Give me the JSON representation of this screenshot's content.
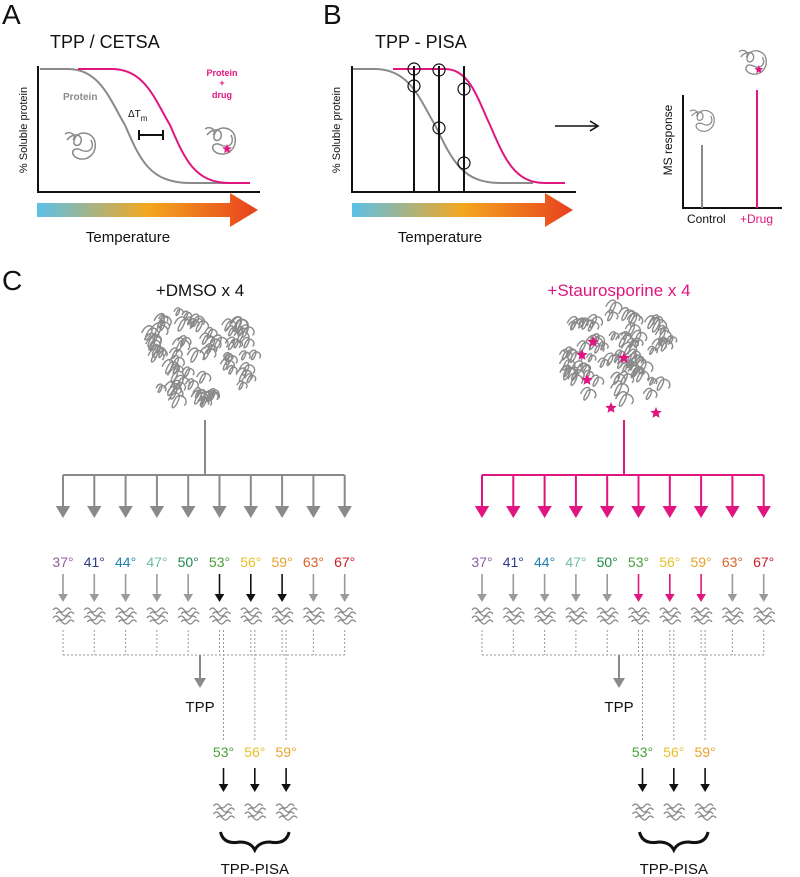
{
  "colors": {
    "gray": "#8a8a8a",
    "magenta": "#e0157f",
    "black": "#111111"
  },
  "panel_a": {
    "label": "A",
    "title": "TPP / CETSA",
    "y_axis_label": "% Soluble protein",
    "x_axis_label": "Temperature",
    "protein_label": "Protein",
    "delta_tm_label": "ΔT",
    "delta_tm_sub": "m",
    "drug_label": [
      "Protein",
      "+",
      "drug"
    ]
  },
  "panel_b": {
    "label": "B",
    "title": "TPP - PISA",
    "y_axis_label": "% Soluble protein",
    "x_axis_label": "Temperature",
    "ms_axis_label": "MS response",
    "control_label": "Control",
    "drug_label": "+Drug"
  },
  "panel_c": {
    "label": "C",
    "conditions": [
      {
        "title": "+DMSO x 4",
        "color": "#111111",
        "arrow_color": "#8a8a8a"
      },
      {
        "title": "+Staurosporine x 4",
        "color": "#e0157f",
        "arrow_color": "#e0157f"
      }
    ],
    "temperatures": [
      {
        "label": "37°",
        "color": "#8e5ea2",
        "pisa": false
      },
      {
        "label": "41°",
        "color": "#2e3a87",
        "pisa": false
      },
      {
        "label": "44°",
        "color": "#1f7fb0",
        "pisa": false
      },
      {
        "label": "47°",
        "color": "#6fc0a8",
        "pisa": false
      },
      {
        "label": "50°",
        "color": "#1e8a4a",
        "pisa": false
      },
      {
        "label": "53°",
        "color": "#4a9e3a",
        "pisa": true
      },
      {
        "label": "56°",
        "color": "#e5c02a",
        "pisa": true
      },
      {
        "label": "59°",
        "color": "#e8a22a",
        "pisa": true
      },
      {
        "label": "63°",
        "color": "#d9622a",
        "pisa": false
      },
      {
        "label": "67°",
        "color": "#c8202a",
        "pisa": false
      }
    ],
    "tpp_label": "TPP",
    "pisa_label": "TPP-PISA"
  }
}
